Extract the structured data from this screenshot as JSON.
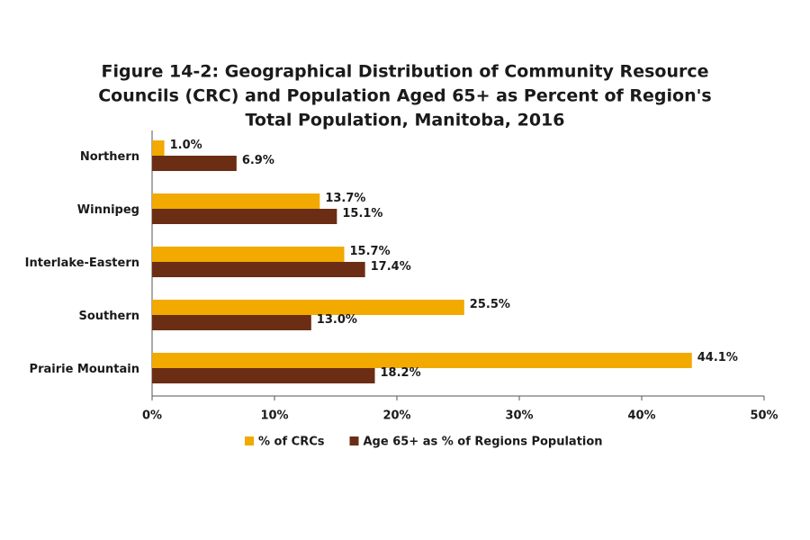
{
  "chart_data": {
    "type": "hbar",
    "title": [
      "Figure 14-2: Geographical Distribution of Community Resource",
      "Councils (CRC) and Population Aged 65+ as Percent of Region's",
      "Total Population, Manitoba, 2016"
    ],
    "categories": [
      "Northern",
      "Winnipeg",
      "Interlake-Eastern",
      "Southern",
      "Prairie Mountain"
    ],
    "series": [
      {
        "name": "% of CRCs",
        "color": "#f2a900",
        "values": [
          1.0,
          13.7,
          15.7,
          25.5,
          44.1
        ],
        "value_labels": [
          "1.0%",
          "13.7%",
          "15.7%",
          "25.5%",
          "44.1%"
        ]
      },
      {
        "name": "Age 65+ as % of Regions Population",
        "color": "#6b2d14",
        "values": [
          6.9,
          15.1,
          17.4,
          13.0,
          18.2
        ],
        "value_labels": [
          "6.9%",
          "15.1%",
          "17.4%",
          "13.0%",
          "18.2%"
        ]
      }
    ],
    "xlim": [
      0,
      50
    ],
    "xticks": [
      {
        "value": 0,
        "label": "0%"
      },
      {
        "value": 10,
        "label": "10%"
      },
      {
        "value": 20,
        "label": "20%"
      },
      {
        "value": 30,
        "label": "30%"
      },
      {
        "value": 40,
        "label": "40%"
      },
      {
        "value": 50,
        "label": "50%"
      }
    ],
    "legend": "bottom"
  }
}
